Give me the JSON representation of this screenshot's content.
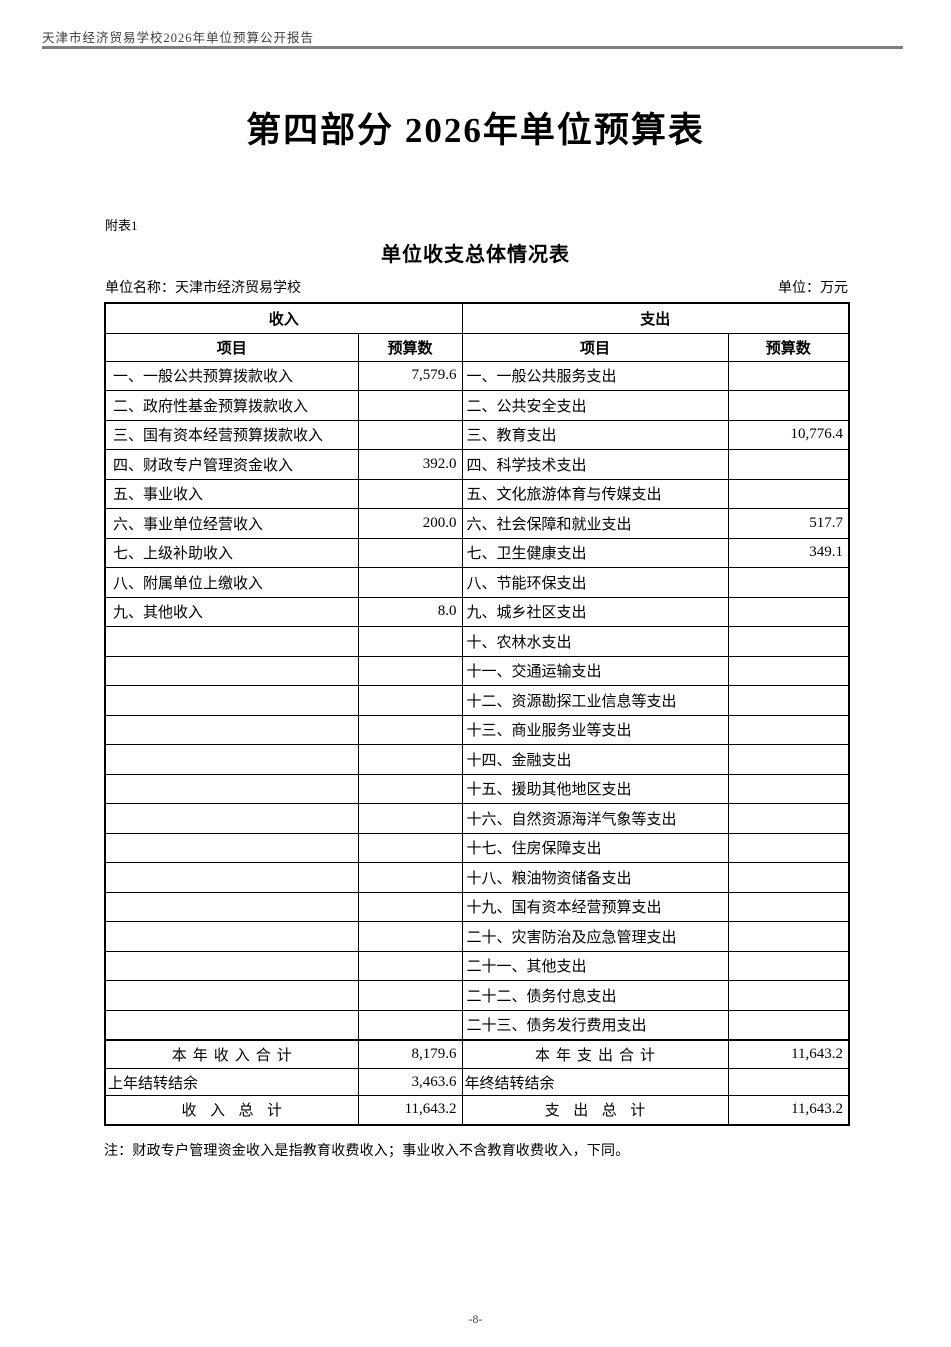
{
  "page_header": {
    "title": "天津市经济贸易学校2026年单位预算公开报告"
  },
  "section_title": "第四部分 2026年单位预算表",
  "attachment_label": "附表1",
  "table_title": "单位收支总体情况表",
  "meta": {
    "unit_name": "单位名称：天津市经济贸易学校",
    "unit_of_measure": "单位：万元"
  },
  "table": {
    "income_header": "收入",
    "expense_header": "支出",
    "item_header": "项目",
    "budget_header": "预算数",
    "rows": [
      {
        "income_item": "一、一般公共预算拨款收入",
        "income_value": "7,579.6",
        "expense_item": "一、一般公共服务支出",
        "expense_value": ""
      },
      {
        "income_item": "二、政府性基金预算拨款收入",
        "income_value": "",
        "expense_item": "二、公共安全支出",
        "expense_value": ""
      },
      {
        "income_item": "三、国有资本经营预算拨款收入",
        "income_value": "",
        "expense_item": "三、教育支出",
        "expense_value": "10,776.4"
      },
      {
        "income_item": "四、财政专户管理资金收入",
        "income_value": "392.0",
        "expense_item": "四、科学技术支出",
        "expense_value": ""
      },
      {
        "income_item": "五、事业收入",
        "income_value": "",
        "expense_item": "五、文化旅游体育与传媒支出",
        "expense_value": ""
      },
      {
        "income_item": "六、事业单位经营收入",
        "income_value": "200.0",
        "expense_item": "六、社会保障和就业支出",
        "expense_value": "517.7"
      },
      {
        "income_item": "七、上级补助收入",
        "income_value": "",
        "expense_item": "七、卫生健康支出",
        "expense_value": "349.1"
      },
      {
        "income_item": "八、附属单位上缴收入",
        "income_value": "",
        "expense_item": "八、节能环保支出",
        "expense_value": ""
      },
      {
        "income_item": "九、其他收入",
        "income_value": "8.0",
        "expense_item": "九、城乡社区支出",
        "expense_value": ""
      },
      {
        "income_item": "",
        "income_value": "",
        "expense_item": "十、农林水支出",
        "expense_value": ""
      },
      {
        "income_item": "",
        "income_value": "",
        "expense_item": "十一、交通运输支出",
        "expense_value": ""
      },
      {
        "income_item": "",
        "income_value": "",
        "expense_item": "十二、资源勘探工业信息等支出",
        "expense_value": ""
      },
      {
        "income_item": "",
        "income_value": "",
        "expense_item": "十三、商业服务业等支出",
        "expense_value": ""
      },
      {
        "income_item": "",
        "income_value": "",
        "expense_item": "十四、金融支出",
        "expense_value": ""
      },
      {
        "income_item": "",
        "income_value": "",
        "expense_item": "十五、援助其他地区支出",
        "expense_value": ""
      },
      {
        "income_item": "",
        "income_value": "",
        "expense_item": "十六、自然资源海洋气象等支出",
        "expense_value": ""
      },
      {
        "income_item": "",
        "income_value": "",
        "expense_item": "十七、住房保障支出",
        "expense_value": ""
      },
      {
        "income_item": "",
        "income_value": "",
        "expense_item": "十八、粮油物资储备支出",
        "expense_value": ""
      },
      {
        "income_item": "",
        "income_value": "",
        "expense_item": "十九、国有资本经营预算支出",
        "expense_value": ""
      },
      {
        "income_item": "",
        "income_value": "",
        "expense_item": "二十、灾害防治及应急管理支出",
        "expense_value": ""
      },
      {
        "income_item": "",
        "income_value": "",
        "expense_item": "二十一、其他支出",
        "expense_value": ""
      },
      {
        "income_item": "",
        "income_value": "",
        "expense_item": "二十二、债务付息支出",
        "expense_value": ""
      },
      {
        "income_item": "",
        "income_value": "",
        "expense_item": "二十三、债务发行费用支出",
        "expense_value": ""
      }
    ],
    "summary": {
      "current_income_label": "本年收入合计",
      "current_income_value": "8,179.6",
      "current_expense_label": "本年支出合计",
      "current_expense_value": "11,643.2",
      "carryover_income_label": "上年结转结余",
      "carryover_income_value": "3,463.6",
      "carryover_expense_label": "年终结转结余",
      "carryover_expense_value": "",
      "total_income_label": "收入总计",
      "total_income_value": "11,643.2",
      "total_expense_label": "支出总计",
      "total_expense_value": "11,643.2"
    }
  },
  "note": "注：财政专户管理资金收入是指教育收费收入；事业收入不含教育收费收入，下同。",
  "page_number": "-8-",
  "colors": {
    "border": "#000000",
    "header_rule": "#7f7f7f",
    "text": "#000000"
  }
}
